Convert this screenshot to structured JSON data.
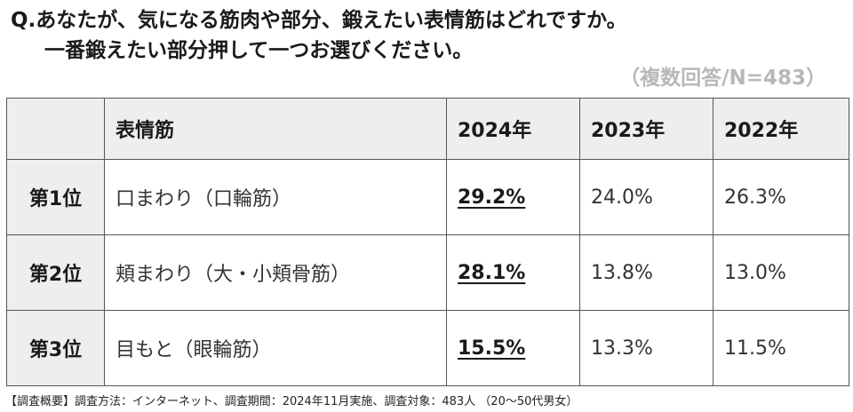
{
  "question": {
    "line1": "Q.あなたが、気になる筋肉や部分、鍛えたい表情筋はどれですか。",
    "line2": "一番鍛えたい部分押して一つお選びください。"
  },
  "sample_note": "（複数回答/N=483）",
  "chart_data": {
    "type": "table",
    "columns": [
      "",
      "表情筋",
      "2024年",
      "2023年",
      "2022年"
    ],
    "rows": [
      {
        "rank": "第1位",
        "muscle": "口まわり（口輪筋）",
        "v2024": "29.2%",
        "v2023": "24.0%",
        "v2022": "26.3%"
      },
      {
        "rank": "第2位",
        "muscle": "頬まわり（大・小頬骨筋）",
        "v2024": "28.1%",
        "v2023": "13.8%",
        "v2022": "13.0%"
      },
      {
        "rank": "第3位",
        "muscle": "目もと（眼輪筋）",
        "v2024": "15.5%",
        "v2023": "13.3%",
        "v2022": "11.5%"
      }
    ]
  },
  "footnote": "【調査概要】調査方法：インターネット、調査期間：2024年11月実施、調査対象：483人 （20～50代男女）"
}
